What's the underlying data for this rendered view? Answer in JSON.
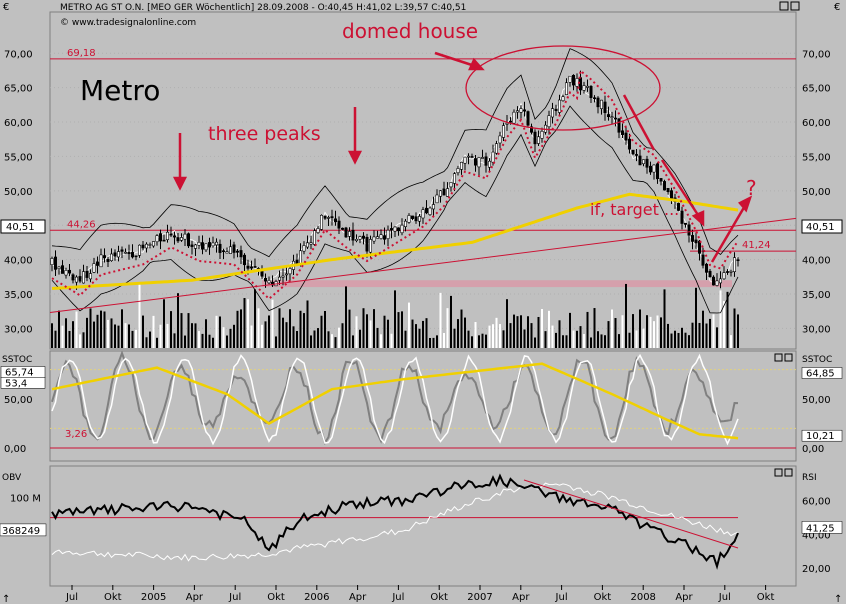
{
  "header": {
    "currency_left": "€",
    "currency_right": "€",
    "title": "METRO AG ST O.N. [MEO GER  Wöchentlich] 28.09.2008 - O:40,45 H:41,02 L:39,57 C:40,51",
    "source": "© www.tradesignalonline.com"
  },
  "colors": {
    "panel_bg": "#c0c0c0",
    "annotation_red": "#cc1133",
    "sma_yellow": "#f0d000",
    "stoch_white": "#ffffff",
    "stoch_gray": "#808080",
    "volume": "#000000",
    "shade_pink": "#d89aa8"
  },
  "chart_data": [
    {
      "type": "candlestick",
      "name": "price",
      "frequency": "weekly",
      "ylim": [
        27,
        76
      ],
      "y_ticks": [
        "70,00",
        "65,00",
        "60,00",
        "55,00",
        "50,00",
        "45,00",
        "40,00",
        "35,00",
        "30,00"
      ],
      "last_price_label": "40,51",
      "x_ticks": [
        "Jul",
        "Okt",
        "2005",
        "Apr",
        "Jul",
        "Okt",
        "2006",
        "Apr",
        "Jul",
        "Okt",
        "2007",
        "Apr",
        "Jul",
        "Okt",
        "2008",
        "Apr",
        "Jul",
        "Okt"
      ],
      "close_anchors": [
        {
          "x": 0,
          "y": 39.5
        },
        {
          "x": 8,
          "y": 37.0
        },
        {
          "x": 14,
          "y": 40.0
        },
        {
          "x": 26,
          "y": 41.5
        },
        {
          "x": 34,
          "y": 44.0
        },
        {
          "x": 42,
          "y": 42.0
        },
        {
          "x": 52,
          "y": 41.5
        },
        {
          "x": 58,
          "y": 38.5
        },
        {
          "x": 62,
          "y": 36.5
        },
        {
          "x": 70,
          "y": 40.0
        },
        {
          "x": 78,
          "y": 46.5
        },
        {
          "x": 84,
          "y": 44.0
        },
        {
          "x": 90,
          "y": 42.0
        },
        {
          "x": 98,
          "y": 44.5
        },
        {
          "x": 106,
          "y": 47.0
        },
        {
          "x": 112,
          "y": 50.0
        },
        {
          "x": 118,
          "y": 55.0
        },
        {
          "x": 124,
          "y": 54.0
        },
        {
          "x": 130,
          "y": 60.0
        },
        {
          "x": 134,
          "y": 62.5
        },
        {
          "x": 138,
          "y": 57.0
        },
        {
          "x": 144,
          "y": 62.0
        },
        {
          "x": 148,
          "y": 66.5
        },
        {
          "x": 154,
          "y": 64.0
        },
        {
          "x": 160,
          "y": 61.0
        },
        {
          "x": 166,
          "y": 55.0
        },
        {
          "x": 172,
          "y": 53.0
        },
        {
          "x": 178,
          "y": 48.0
        },
        {
          "x": 184,
          "y": 42.0
        },
        {
          "x": 188,
          "y": 37.0
        },
        {
          "x": 191,
          "y": 36.5
        },
        {
          "x": 194,
          "y": 39.0
        },
        {
          "x": 196,
          "y": 40.51
        }
      ],
      "sma_yellow": [
        {
          "x": 0,
          "y": 35.8
        },
        {
          "x": 40,
          "y": 37.0
        },
        {
          "x": 80,
          "y": 40.0
        },
        {
          "x": 120,
          "y": 42.5
        },
        {
          "x": 150,
          "y": 47.5
        },
        {
          "x": 165,
          "y": 49.5
        },
        {
          "x": 180,
          "y": 48.5
        },
        {
          "x": 196,
          "y": 47.2
        }
      ],
      "horizontal_levels": [
        {
          "value": 69.18,
          "label": "69,18"
        },
        {
          "value": 44.26,
          "label": "44,26"
        },
        {
          "value": 41.24,
          "label": "41,24"
        }
      ],
      "support_zone": [
        36.0,
        37.0
      ],
      "volume": {
        "note": "weekly volume bars at panel bottom, relative heights"
      }
    },
    {
      "type": "line",
      "name": "SSTOC",
      "ylim": [
        0,
        100
      ],
      "y_ticks": [
        "50,00",
        "0,00"
      ],
      "left_labels": [
        "65,74",
        "53,4",
        "3,26"
      ],
      "right_labels": [
        "64,85",
        "10,21"
      ],
      "series": [
        {
          "values_note": "fast and slow stochastic oscillating between ~5 and ~95"
        }
      ],
      "slow_yellow": [
        {
          "x": 0,
          "y": 60
        },
        {
          "x": 30,
          "y": 82
        },
        {
          "x": 50,
          "y": 55
        },
        {
          "x": 62,
          "y": 25
        },
        {
          "x": 80,
          "y": 60
        },
        {
          "x": 100,
          "y": 70
        },
        {
          "x": 120,
          "y": 78
        },
        {
          "x": 140,
          "y": 86
        },
        {
          "x": 160,
          "y": 55
        },
        {
          "x": 175,
          "y": 30
        },
        {
          "x": 185,
          "y": 14
        },
        {
          "x": 196,
          "y": 10
        }
      ]
    },
    {
      "type": "line",
      "name": "OBV / RSI",
      "left_label": "OBV",
      "right_label": "RSI",
      "left_ticks": [
        "100 M"
      ],
      "left_value_label": "368249",
      "rsi_ylim": [
        10,
        80
      ],
      "right_ticks": [
        "60,00",
        "40,00",
        "20,00"
      ],
      "rsi_value_label": "41,25",
      "obv_anchors": [
        {
          "x": 0,
          "y": 52
        },
        {
          "x": 20,
          "y": 55
        },
        {
          "x": 40,
          "y": 57
        },
        {
          "x": 56,
          "y": 47
        },
        {
          "x": 62,
          "y": 30
        },
        {
          "x": 70,
          "y": 48
        },
        {
          "x": 85,
          "y": 58
        },
        {
          "x": 100,
          "y": 60
        },
        {
          "x": 115,
          "y": 68
        },
        {
          "x": 128,
          "y": 72
        },
        {
          "x": 135,
          "y": 68
        },
        {
          "x": 145,
          "y": 62
        },
        {
          "x": 160,
          "y": 55
        },
        {
          "x": 172,
          "y": 42
        },
        {
          "x": 185,
          "y": 30
        },
        {
          "x": 190,
          "y": 24
        },
        {
          "x": 196,
          "y": 40
        }
      ],
      "rsi_anchors": [
        {
          "x": 0,
          "y": 30
        },
        {
          "x": 20,
          "y": 28
        },
        {
          "x": 40,
          "y": 26
        },
        {
          "x": 60,
          "y": 28
        },
        {
          "x": 80,
          "y": 35
        },
        {
          "x": 100,
          "y": 42
        },
        {
          "x": 115,
          "y": 55
        },
        {
          "x": 130,
          "y": 66
        },
        {
          "x": 145,
          "y": 70
        },
        {
          "x": 160,
          "y": 62
        },
        {
          "x": 175,
          "y": 52
        },
        {
          "x": 190,
          "y": 43
        },
        {
          "x": 196,
          "y": 40
        }
      ]
    }
  ],
  "annotations": {
    "ticker": "Metro",
    "domed_house": "domed house",
    "three_peaks": "three peaks",
    "if_target": "if, target ...",
    "question": "?"
  }
}
